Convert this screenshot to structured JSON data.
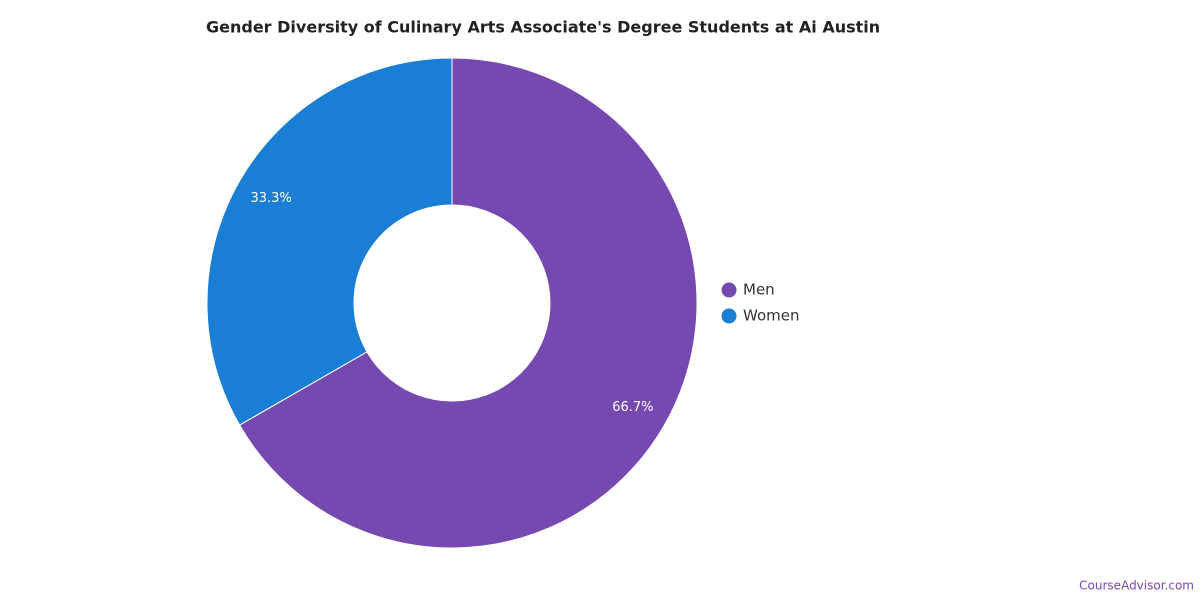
{
  "chart_data": {
    "type": "pie",
    "title": "Gender Diversity of Culinary Arts Associate's Degree Students at Ai Austin",
    "categories": [
      "Men",
      "Women"
    ],
    "values": [
      66.7,
      33.3
    ],
    "value_labels": [
      "66.7%",
      "33.3%"
    ],
    "colors": [
      "#7649b0",
      "#1a7fd4"
    ],
    "legend": "right"
  },
  "watermark": "CourseAdvisor.com"
}
